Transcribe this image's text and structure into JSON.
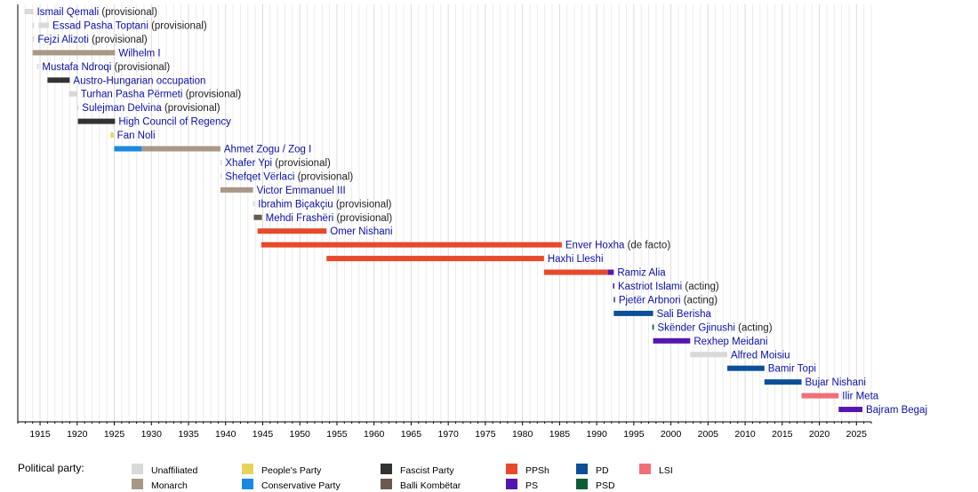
{
  "chart_data": {
    "type": "timeline",
    "xlim": [
      1912,
      2027
    ],
    "x_ticks": [
      1915,
      1920,
      1925,
      1930,
      1935,
      1940,
      1945,
      1950,
      1955,
      1960,
      1965,
      1970,
      1975,
      1980,
      1985,
      1990,
      1995,
      2000,
      2005,
      2010,
      2015,
      2020,
      2025
    ],
    "grid": "vertical, yearly",
    "legend_title": "Political party:",
    "legend_placement": "bottom",
    "parties": [
      {
        "name": "Unaffiliated",
        "color": "#d9d9d9"
      },
      {
        "name": "Monarch",
        "color": "#a89886"
      },
      {
        "name": "People's Party",
        "color": "#e6d35c"
      },
      {
        "name": "Conservative Party",
        "color": "#1a8ae0"
      },
      {
        "name": "Fascist Party",
        "color": "#333333"
      },
      {
        "name": "Balli Kombëtar",
        "color": "#6b5a50"
      },
      {
        "name": "PPSh",
        "color": "#e8492a"
      },
      {
        "name": "PS",
        "color": "#5516b0"
      },
      {
        "name": "PD",
        "color": "#0c4f98"
      },
      {
        "name": "PSD",
        "color": "#0f5c36"
      },
      {
        "name": "LSI",
        "color": "#f07078"
      }
    ],
    "rows": [
      {
        "name": "Ismail Qemali",
        "note": "(provisional)",
        "segments": [
          [
            1912.9,
            1914.1,
            "Unaffiliated"
          ]
        ]
      },
      {
        "name": "Essad Pasha Toptani",
        "note": "(provisional)",
        "segments": [
          [
            1914.0,
            1914.2,
            "Unaffiliated"
          ],
          [
            1914.8,
            1916.2,
            "Unaffiliated"
          ]
        ]
      },
      {
        "name": "Fejzi Alizoti",
        "note": "(provisional)",
        "segments": [
          [
            1914.0,
            1914.2,
            "Unaffiliated"
          ]
        ]
      },
      {
        "name": "Wilhelm I",
        "note": "",
        "segments": [
          [
            1914.0,
            1925.1,
            "Monarch"
          ]
        ]
      },
      {
        "name": "Mustafa Ndroqi",
        "note": "(provisional)",
        "segments": [
          [
            1914.6,
            1914.8,
            "Unaffiliated"
          ]
        ]
      },
      {
        "name": "Austro-Hungarian occupation",
        "note": "",
        "segments": [
          [
            1916.0,
            1919.0,
            "Fascist Party"
          ]
        ]
      },
      {
        "name": "Turhan Pasha Përmeti",
        "note": "(provisional)",
        "segments": [
          [
            1918.9,
            1920.0,
            "Unaffiliated"
          ]
        ]
      },
      {
        "name": "Sulejman Delvina",
        "note": "(provisional)",
        "segments": [
          [
            1920.0,
            1920.1,
            "Unaffiliated"
          ]
        ]
      },
      {
        "name": "High Council of Regency",
        "note": "",
        "segments": [
          [
            1920.1,
            1925.1,
            "Fascist Party"
          ]
        ]
      },
      {
        "name": "Fan Noli",
        "note": "",
        "segments": [
          [
            1924.5,
            1924.9,
            "People's Party"
          ]
        ]
      },
      {
        "name": "Ahmet Zogu / Zog I",
        "note": "",
        "segments": [
          [
            1925.0,
            1928.7,
            "Conservative Party"
          ],
          [
            1928.7,
            1939.3,
            "Monarch"
          ]
        ]
      },
      {
        "name": "Xhafer Ypi",
        "note": "(provisional)",
        "segments": [
          [
            1939.3,
            1939.4,
            "Unaffiliated"
          ]
        ]
      },
      {
        "name": "Shefqet Vërlaci",
        "note": "(provisional)",
        "segments": [
          [
            1939.3,
            1939.4,
            "Unaffiliated"
          ]
        ]
      },
      {
        "name": "Victor Emmanuel III",
        "note": "",
        "segments": [
          [
            1939.3,
            1943.7,
            "Monarch"
          ]
        ]
      },
      {
        "name": "Ibrahim Biçakçiu",
        "note": "(provisional)",
        "segments": [
          [
            1943.7,
            1943.9,
            "Unaffiliated"
          ]
        ]
      },
      {
        "name": "Mehdi Frashëri",
        "note": "(provisional)",
        "segments": [
          [
            1943.8,
            1944.9,
            "Balli Kombëtar"
          ]
        ]
      },
      {
        "name": "Omer Nishani",
        "note": "",
        "segments": [
          [
            1944.3,
            1953.6,
            "PPSh"
          ]
        ]
      },
      {
        "name": "Enver Hoxha",
        "note": "(de facto)",
        "segments": [
          [
            1944.8,
            1985.3,
            "PPSh"
          ]
        ]
      },
      {
        "name": "Haxhi Lleshi",
        "note": "",
        "segments": [
          [
            1953.6,
            1982.9,
            "PPSh"
          ]
        ]
      },
      {
        "name": "Ramiz Alia",
        "note": "",
        "segments": [
          [
            1982.9,
            1991.5,
            "PPSh"
          ],
          [
            1991.5,
            1992.3,
            "PS"
          ]
        ]
      },
      {
        "name": "Kastriot Islami",
        "note": "(acting)",
        "segments": [
          [
            1992.2,
            1992.35,
            "PS"
          ]
        ]
      },
      {
        "name": "Pjetër Arbnori",
        "note": "(acting)",
        "segments": [
          [
            1992.3,
            1992.4,
            "PD"
          ]
        ]
      },
      {
        "name": "Sali Berisha",
        "note": "",
        "segments": [
          [
            1992.3,
            1997.6,
            "PD"
          ]
        ]
      },
      {
        "name": "Skënder Gjinushi",
        "note": "(acting)",
        "segments": [
          [
            1997.5,
            1997.7,
            "PSD"
          ]
        ]
      },
      {
        "name": "Rexhep Meidani",
        "note": "",
        "segments": [
          [
            1997.6,
            2002.6,
            "PS"
          ]
        ]
      },
      {
        "name": "Alfred Moisiu",
        "note": "",
        "segments": [
          [
            2002.6,
            2007.6,
            "Unaffiliated"
          ]
        ]
      },
      {
        "name": "Bamir Topi",
        "note": "",
        "segments": [
          [
            2007.6,
            2012.6,
            "PD"
          ]
        ]
      },
      {
        "name": "Bujar Nishani",
        "note": "",
        "segments": [
          [
            2012.6,
            2017.6,
            "PD"
          ]
        ]
      },
      {
        "name": "Ilir Meta",
        "note": "",
        "segments": [
          [
            2017.6,
            2022.6,
            "LSI"
          ]
        ]
      },
      {
        "name": "Bajram Begaj",
        "note": "",
        "segments": [
          [
            2022.6,
            2025.8,
            "PS"
          ]
        ]
      }
    ]
  }
}
